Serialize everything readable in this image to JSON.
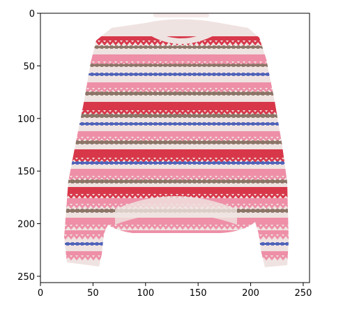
{
  "image": {
    "subject": "sweater-photo",
    "pixel_grid": {
      "width": 256,
      "height": 256
    }
  },
  "axes": {
    "x_ticks": [
      "0",
      "50",
      "100",
      "150",
      "200",
      "250"
    ],
    "y_ticks": [
      "0",
      "50",
      "100",
      "150",
      "200",
      "250"
    ],
    "x_range": [
      0,
      256
    ],
    "y_range": [
      0,
      256
    ],
    "y_inverted": true
  },
  "colors": {
    "frame": "#000000",
    "knit_base": "#efe3e1",
    "red": "#d8374a",
    "pink": "#ee8fa7",
    "blue": "#4f63b8",
    "brown": "#8c7667"
  }
}
